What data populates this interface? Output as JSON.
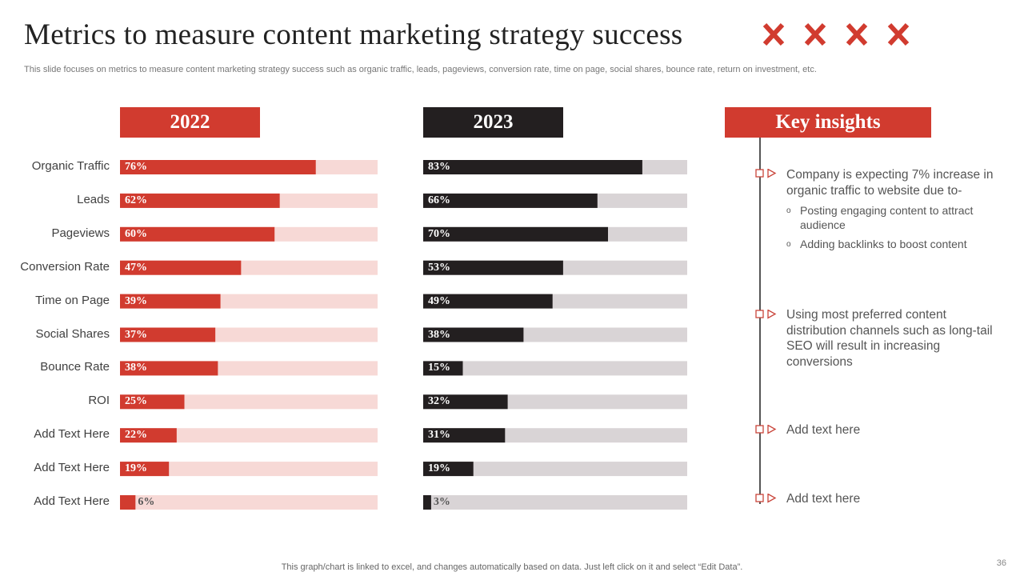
{
  "title": "Metrics to measure content marketing strategy success",
  "subtitle": "This slide focuses on metrics to measure content marketing strategy success such as organic traffic, leads, pageviews, conversion rate, time on page, social shares, bounce rate, return on investment, etc.",
  "colors": {
    "red": "#d13b2f",
    "red_light": "#f7d9d6",
    "dark": "#231f20",
    "gray_light": "#d9d4d6",
    "marker": "#c9443a"
  },
  "icons": [
    "cross-icon",
    "cross-icon",
    "cross-icon",
    "cross-icon"
  ],
  "chart_data": {
    "type": "bar",
    "orientation": "horizontal",
    "categories": [
      "Organic Traffic",
      "Leads",
      "Pageviews",
      "Conversion Rate",
      "Time on Page",
      "Social Shares",
      "Bounce Rate",
      "ROI",
      "Add Text Here",
      "Add Text Here",
      "Add Text Here"
    ],
    "series": [
      {
        "name": "2022",
        "values": [
          76,
          62,
          60,
          47,
          39,
          37,
          38,
          25,
          22,
          19,
          6
        ],
        "labels": [
          "76%",
          "62%",
          "60%",
          "47%",
          "39%",
          "37%",
          "38%",
          "25%",
          "22%",
          "19%",
          "6%"
        ]
      },
      {
        "name": "2023",
        "values": [
          83,
          66,
          70,
          53,
          49,
          38,
          15,
          32,
          31,
          19,
          3
        ],
        "labels": [
          "83%",
          "66%",
          "70%",
          "53%",
          "49%",
          "38%",
          "15%",
          "32%",
          "31%",
          "19%",
          "3%"
        ]
      }
    ],
    "xlim": [
      0,
      100
    ],
    "grid": false
  },
  "insights": {
    "heading": "Key insights",
    "items": [
      {
        "text": "Company is expecting 7% increase in organic traffic to website due to-",
        "bullets": [
          "Posting engaging content to attract audience",
          "Adding backlinks to boost content"
        ]
      },
      {
        "text": "Using most preferred content distribution channels  such as long-tail SEO will result in increasing conversions",
        "bullets": []
      },
      {
        "text": "Add text here",
        "bullets": []
      },
      {
        "text": "Add text here",
        "bullets": []
      }
    ],
    "bullet_glyph": "o"
  },
  "footer": "This graph/chart is linked to excel,  and changes automatically based on data. Just left click on it and select “Edit Data”.",
  "page_number": "36"
}
